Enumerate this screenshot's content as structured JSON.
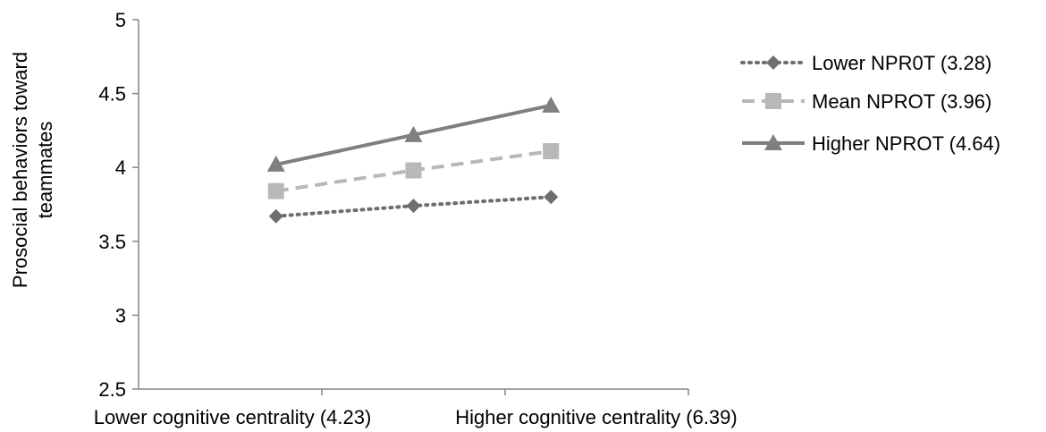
{
  "chart_data": {
    "type": "line",
    "title": "",
    "xlabel": "",
    "ylabel_lines": [
      "Prosocial behaviors toward",
      "teammates"
    ],
    "ylim": [
      2.5,
      5
    ],
    "yticks": [
      "2.5",
      "3",
      "3.5",
      "4",
      "4.5",
      "5"
    ],
    "yticks_values": [
      2.5,
      3,
      3.5,
      4,
      4.5,
      5
    ],
    "x_tick_labels": [
      "Lower cognitive centrality (4.23)",
      "Higher cognitive centrality (6.39)"
    ],
    "x": [
      1,
      2,
      3
    ],
    "grid": false,
    "legend_position": "right",
    "series": [
      {
        "name": "Lower NPR0T (3.28)",
        "values": [
          3.67,
          3.74,
          3.8
        ],
        "color": "#6e6e6e",
        "marker": "diamond",
        "dash": "dotted"
      },
      {
        "name": "Mean NPROT (3.96)",
        "values": [
          3.84,
          3.98,
          4.11
        ],
        "color": "#b8b8b8",
        "marker": "square",
        "dash": "dashed"
      },
      {
        "name": "Higher NPROT (4.64)",
        "values": [
          4.02,
          4.22,
          4.42
        ],
        "color": "#7f7f7f",
        "marker": "triangle",
        "dash": "solid"
      }
    ]
  }
}
